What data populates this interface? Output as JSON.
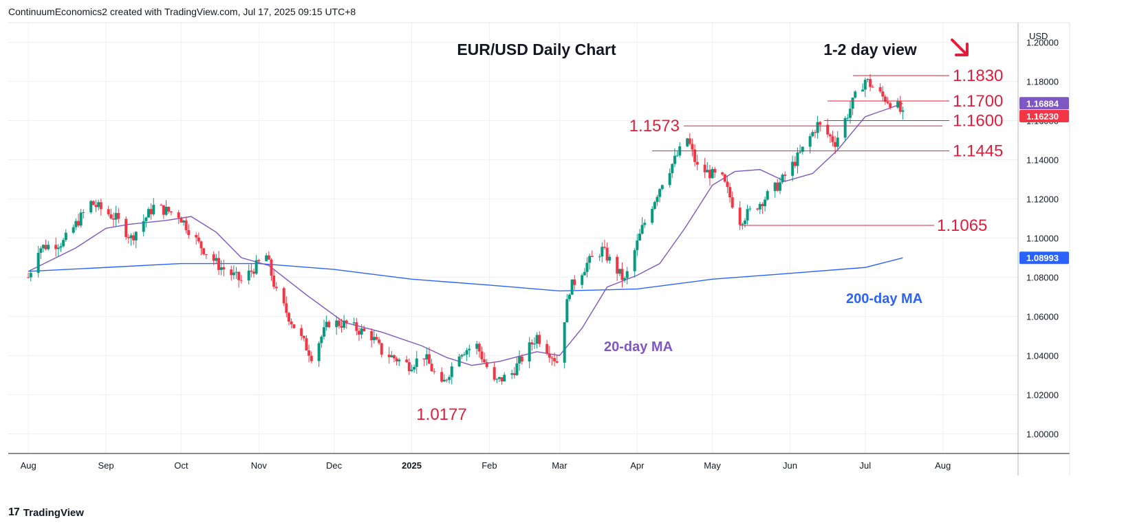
{
  "header": {
    "attribution": "ContinuumEconomics2 created with TradingView.com, Jul 17, 2025 09:15 UTC+8"
  },
  "footer": {
    "brand": "TradingView",
    "brand_mark": "17"
  },
  "colors": {
    "up": "#089981",
    "down": "#f23645",
    "ma20": "#7e57c2",
    "ma200": "#2962ff",
    "levels": "#e01e3c"
  },
  "chart_data": {
    "type": "candlestick",
    "title": "EUR/USD Daily Chart",
    "subtitle": "1-2 day view",
    "subtitle_icon": "arrow-down-right-icon",
    "currency": "USD",
    "ylim": [
      0.99,
      1.21
    ],
    "y_ticks": [
      "1.20000",
      "1.18000",
      "1.16000",
      "1.14000",
      "1.12000",
      "1.10000",
      "1.08000",
      "1.06000",
      "1.04000",
      "1.02000",
      "1.00000"
    ],
    "x_ticks": [
      "Aug",
      "Sep",
      "Oct",
      "Nov",
      "Dec",
      "2025",
      "Feb",
      "Mar",
      "Apr",
      "May",
      "Jun",
      "Jul",
      "Aug"
    ],
    "price_tags": [
      {
        "label": "1.16884",
        "value": 1.16884,
        "series": "20-day MA"
      },
      {
        "label": "1.16230",
        "value": 1.1623,
        "series": "last price"
      },
      {
        "label": "1.08993",
        "value": 1.08993,
        "series": "200-day MA"
      }
    ],
    "levels": [
      {
        "label": "1.1830",
        "value": 1.183
      },
      {
        "label": "1.1700",
        "value": 1.17
      },
      {
        "label": "1.1600",
        "value": 1.16
      },
      {
        "label": "1.1573",
        "value": 1.1573
      },
      {
        "label": "1.1445",
        "value": 1.1445
      },
      {
        "label": "1.1065",
        "value": 1.1065
      },
      {
        "label": "1.0177",
        "value": 1.0177
      }
    ],
    "series": [
      {
        "name": "20-day MA",
        "points": [
          [
            "2024-08-01",
            1.083
          ],
          [
            "2024-08-20",
            1.095
          ],
          [
            "2024-09-01",
            1.105
          ],
          [
            "2024-09-10",
            1.107
          ],
          [
            "2024-09-25",
            1.109
          ],
          [
            "2024-10-05",
            1.111
          ],
          [
            "2024-10-15",
            1.103
          ],
          [
            "2024-10-25",
            1.09
          ],
          [
            "2024-11-05",
            1.086
          ],
          [
            "2024-11-20",
            1.071
          ],
          [
            "2024-12-05",
            1.057
          ],
          [
            "2024-12-20",
            1.052
          ],
          [
            "2025-01-05",
            1.045
          ],
          [
            "2025-01-15",
            1.039
          ],
          [
            "2025-01-25",
            1.035
          ],
          [
            "2025-02-05",
            1.037
          ],
          [
            "2025-02-20",
            1.042
          ],
          [
            "2025-03-01",
            1.04
          ],
          [
            "2025-03-10",
            1.054
          ],
          [
            "2025-03-20",
            1.075
          ],
          [
            "2025-04-01",
            1.081
          ],
          [
            "2025-04-10",
            1.087
          ],
          [
            "2025-04-20",
            1.105
          ],
          [
            "2025-05-01",
            1.127
          ],
          [
            "2025-05-10",
            1.134
          ],
          [
            "2025-05-20",
            1.135
          ],
          [
            "2025-05-30",
            1.129
          ],
          [
            "2025-06-10",
            1.133
          ],
          [
            "2025-06-20",
            1.145
          ],
          [
            "2025-07-01",
            1.162
          ],
          [
            "2025-07-10",
            1.166
          ],
          [
            "2025-07-16",
            1.1688
          ]
        ]
      },
      {
        "name": "200-day MA",
        "points": [
          [
            "2024-08-01",
            1.083
          ],
          [
            "2024-09-01",
            1.085
          ],
          [
            "2024-10-01",
            1.087
          ],
          [
            "2024-11-01",
            1.087
          ],
          [
            "2024-12-01",
            1.084
          ],
          [
            "2025-01-01",
            1.079
          ],
          [
            "2025-02-01",
            1.076
          ],
          [
            "2025-03-01",
            1.073
          ],
          [
            "2025-04-01",
            1.074
          ],
          [
            "2025-05-01",
            1.079
          ],
          [
            "2025-06-01",
            1.082
          ],
          [
            "2025-07-01",
            1.085
          ],
          [
            "2025-07-16",
            1.0899
          ]
        ]
      },
      {
        "name": "EUR/USD close",
        "points": [
          [
            "2024-08-01",
            1.08
          ],
          [
            "2024-08-05",
            1.095
          ],
          [
            "2024-08-15",
            1.098
          ],
          [
            "2024-08-26",
            1.118
          ],
          [
            "2024-09-05",
            1.11
          ],
          [
            "2024-09-11",
            1.1
          ],
          [
            "2024-09-20",
            1.116
          ],
          [
            "2024-09-30",
            1.112
          ],
          [
            "2024-10-08",
            1.097
          ],
          [
            "2024-10-16",
            1.086
          ],
          [
            "2024-10-25",
            1.078
          ],
          [
            "2024-11-04",
            1.091
          ],
          [
            "2024-11-08",
            1.072
          ],
          [
            "2024-11-15",
            1.055
          ],
          [
            "2024-11-22",
            1.04
          ],
          [
            "2024-11-29",
            1.057
          ],
          [
            "2024-12-06",
            1.056
          ],
          [
            "2024-12-16",
            1.05
          ],
          [
            "2024-12-20",
            1.042
          ],
          [
            "2024-12-31",
            1.035
          ],
          [
            "2025-01-06",
            1.04
          ],
          [
            "2025-01-13",
            1.024
          ],
          [
            "2025-01-20",
            1.042
          ],
          [
            "2025-01-27",
            1.045
          ],
          [
            "2025-02-03",
            1.026
          ],
          [
            "2025-02-10",
            1.031
          ],
          [
            "2025-02-20",
            1.05
          ],
          [
            "2025-02-28",
            1.037
          ],
          [
            "2025-03-05",
            1.074
          ],
          [
            "2025-03-12",
            1.087
          ],
          [
            "2025-03-18",
            1.094
          ],
          [
            "2025-03-27",
            1.078
          ],
          [
            "2025-04-03",
            1.105
          ],
          [
            "2025-04-11",
            1.129
          ],
          [
            "2025-04-21",
            1.151
          ],
          [
            "2025-04-25",
            1.136
          ],
          [
            "2025-05-05",
            1.13
          ],
          [
            "2025-05-12",
            1.109
          ],
          [
            "2025-05-20",
            1.118
          ],
          [
            "2025-05-28",
            1.128
          ],
          [
            "2025-06-05",
            1.143
          ],
          [
            "2025-06-12",
            1.158
          ],
          [
            "2025-06-19",
            1.149
          ],
          [
            "2025-06-27",
            1.172
          ],
          [
            "2025-07-01",
            1.181
          ],
          [
            "2025-07-08",
            1.172
          ],
          [
            "2025-07-14",
            1.167
          ],
          [
            "2025-07-16",
            1.1623
          ]
        ]
      }
    ],
    "annotations": [
      {
        "text": "20-day MA"
      },
      {
        "text": "200-day MA"
      }
    ]
  }
}
